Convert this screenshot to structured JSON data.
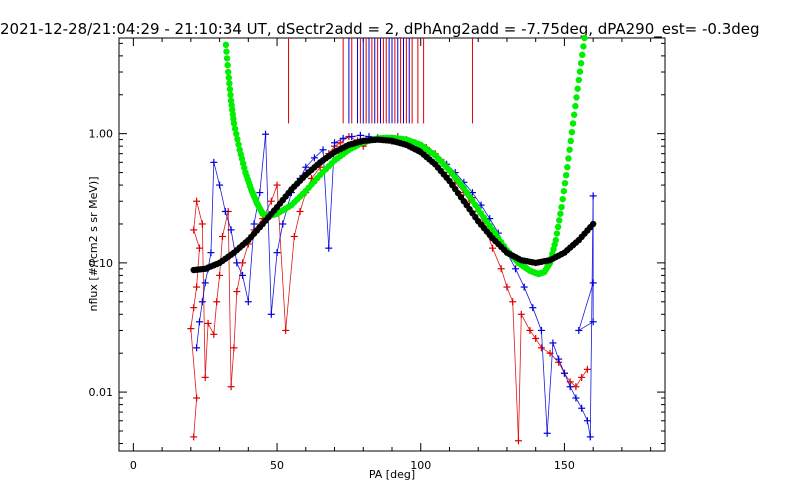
{
  "chart_data": {
    "type": "scatter",
    "title": "2021-12-28/21:04:29 - 21:10:34 UT, dSectr2add = 2, dPhAng2add = -7.75deg, dPA290_est=  -0.3deg",
    "xlabel": "PA [deg]",
    "ylabel": "nflux [#/(cm2 s sr MeV)]",
    "xlim": [
      -5,
      185
    ],
    "ylim": [
      0.0035,
      5.5
    ],
    "yscale": "log",
    "grid": false,
    "x_ticks": [
      0,
      50,
      100,
      150
    ],
    "y_ticks": [
      0.01,
      0.1,
      1.0
    ],
    "x_tick_labels": [
      "0",
      "50",
      "100",
      "150"
    ],
    "y_tick_labels": [
      "0.01",
      "0.10",
      "1.00"
    ],
    "colors": {
      "red": "#dd0000",
      "blue": "#0000dd",
      "green": "#00ee00",
      "black": "#000000"
    },
    "vertical_markers": {
      "red": [
        54,
        73,
        76,
        79,
        81,
        83,
        85,
        87,
        88,
        91,
        93,
        95,
        97,
        99,
        101,
        118
      ],
      "blue": [
        75,
        78,
        80,
        82,
        84,
        86,
        89,
        90,
        92,
        94,
        96
      ],
      "y_top": 5.5,
      "y_bottom": 1.2
    },
    "series": [
      {
        "color": "red",
        "points": [
          [
            21,
            0.0045
          ],
          [
            22,
            0.009
          ],
          [
            20,
            0.031
          ],
          [
            21,
            0.045
          ],
          [
            22,
            0.065
          ],
          [
            23,
            0.13
          ],
          [
            21,
            0.18
          ],
          [
            22,
            0.3
          ],
          [
            24,
            0.2
          ],
          [
            25,
            0.013
          ],
          [
            26,
            0.034
          ],
          [
            28,
            0.028
          ],
          [
            29,
            0.05
          ],
          [
            30,
            0.08
          ],
          [
            31,
            0.16
          ],
          [
            33,
            0.25
          ],
          [
            34,
            0.011
          ],
          [
            35,
            0.022
          ],
          [
            36,
            0.06
          ],
          [
            38,
            0.1
          ],
          [
            40,
            0.14
          ],
          [
            42,
            0.18
          ],
          [
            45,
            0.22
          ],
          [
            48,
            0.3
          ],
          [
            50,
            0.4
          ],
          [
            53,
            0.03
          ],
          [
            56,
            0.16
          ],
          [
            58,
            0.25
          ],
          [
            60,
            0.35
          ],
          [
            62,
            0.45
          ],
          [
            65,
            0.55
          ],
          [
            68,
            0.7
          ],
          [
            70,
            0.8
          ],
          [
            72,
            0.85
          ],
          [
            75,
            0.95
          ],
          [
            78,
            0.88
          ],
          [
            80,
            0.8
          ],
          [
            85,
            0.92
          ],
          [
            88,
            0.9
          ],
          [
            90,
            0.87
          ],
          [
            92,
            0.95
          ],
          [
            95,
            0.9
          ],
          [
            98,
            0.85
          ],
          [
            100,
            0.8
          ],
          [
            102,
            0.78
          ],
          [
            105,
            0.7
          ],
          [
            108,
            0.6
          ],
          [
            110,
            0.5
          ],
          [
            112,
            0.42
          ],
          [
            115,
            0.35
          ],
          [
            117,
            0.3
          ],
          [
            118,
            0.32
          ],
          [
            120,
            0.25
          ],
          [
            122,
            0.2
          ],
          [
            125,
            0.13
          ],
          [
            128,
            0.09
          ],
          [
            130,
            0.065
          ],
          [
            132,
            0.05
          ],
          [
            134,
            0.0042
          ],
          [
            135,
            0.04
          ],
          [
            138,
            0.03
          ],
          [
            140,
            0.026
          ],
          [
            142,
            0.022
          ],
          [
            145,
            0.02
          ],
          [
            148,
            0.017
          ],
          [
            150,
            0.014
          ],
          [
            152,
            0.012
          ],
          [
            154,
            0.011
          ],
          [
            156,
            0.013
          ],
          [
            158,
            0.015
          ]
        ]
      },
      {
        "color": "blue",
        "points": [
          [
            22,
            0.022
          ],
          [
            23,
            0.035
          ],
          [
            24,
            0.05
          ],
          [
            25,
            0.07
          ],
          [
            26,
            0.09
          ],
          [
            27,
            0.12
          ],
          [
            28,
            0.6
          ],
          [
            30,
            0.4
          ],
          [
            32,
            0.25
          ],
          [
            34,
            0.18
          ],
          [
            36,
            0.1
          ],
          [
            38,
            0.08
          ],
          [
            40,
            0.05
          ],
          [
            42,
            0.2
          ],
          [
            44,
            0.35
          ],
          [
            46,
            0.99
          ],
          [
            48,
            0.04
          ],
          [
            50,
            0.12
          ],
          [
            52,
            0.2
          ],
          [
            55,
            0.35
          ],
          [
            58,
            0.45
          ],
          [
            60,
            0.55
          ],
          [
            63,
            0.65
          ],
          [
            66,
            0.75
          ],
          [
            68,
            0.13
          ],
          [
            70,
            0.85
          ],
          [
            73,
            0.92
          ],
          [
            76,
            0.95
          ],
          [
            79,
            0.97
          ],
          [
            82,
            0.95
          ],
          [
            85,
            0.93
          ],
          [
            88,
            0.92
          ],
          [
            90,
            0.9
          ],
          [
            92,
            0.88
          ],
          [
            95,
            0.85
          ],
          [
            98,
            0.82
          ],
          [
            100,
            0.78
          ],
          [
            103,
            0.72
          ],
          [
            106,
            0.65
          ],
          [
            109,
            0.58
          ],
          [
            112,
            0.5
          ],
          [
            115,
            0.42
          ],
          [
            118,
            0.35
          ],
          [
            121,
            0.28
          ],
          [
            124,
            0.22
          ],
          [
            127,
            0.17
          ],
          [
            130,
            0.12
          ],
          [
            133,
            0.09
          ],
          [
            136,
            0.065
          ],
          [
            139,
            0.045
          ],
          [
            142,
            0.03
          ],
          [
            144,
            0.0048
          ],
          [
            146,
            0.024
          ],
          [
            148,
            0.018
          ],
          [
            150,
            0.014
          ],
          [
            152,
            0.011
          ],
          [
            154,
            0.009
          ],
          [
            156,
            0.0075
          ],
          [
            158,
            0.006
          ],
          [
            159,
            0.0045
          ],
          [
            160,
            0.33
          ],
          [
            160,
            0.035
          ],
          [
            155,
            0.03
          ],
          [
            160,
            0.07
          ]
        ]
      },
      {
        "color": "green",
        "name": "",
        "curve": [
          [
            32,
            5.5
          ],
          [
            33,
            3.0
          ],
          [
            34,
            1.8
          ],
          [
            35,
            1.2
          ],
          [
            37,
            0.75
          ],
          [
            39,
            0.5
          ],
          [
            41,
            0.37
          ],
          [
            43,
            0.29
          ],
          [
            45,
            0.24
          ],
          [
            47,
            0.23
          ],
          [
            50,
            0.24
          ],
          [
            55,
            0.28
          ],
          [
            60,
            0.36
          ],
          [
            65,
            0.48
          ],
          [
            70,
            0.62
          ],
          [
            75,
            0.75
          ],
          [
            80,
            0.86
          ],
          [
            85,
            0.92
          ],
          [
            90,
            0.93
          ],
          [
            95,
            0.9
          ],
          [
            100,
            0.82
          ],
          [
            105,
            0.68
          ],
          [
            110,
            0.52
          ],
          [
            115,
            0.38
          ],
          [
            120,
            0.26
          ],
          [
            125,
            0.18
          ],
          [
            130,
            0.125
          ],
          [
            134,
            0.1
          ],
          [
            138,
            0.087
          ],
          [
            141,
            0.082
          ],
          [
            143,
            0.085
          ],
          [
            145,
            0.1
          ],
          [
            147,
            0.15
          ],
          [
            149,
            0.27
          ],
          [
            151,
            0.55
          ],
          [
            153,
            1.2
          ],
          [
            155,
            2.6
          ],
          [
            157,
            5.5
          ]
        ]
      },
      {
        "color": "black",
        "name": "",
        "curve": [
          [
            21,
            0.088
          ],
          [
            25,
            0.09
          ],
          [
            30,
            0.1
          ],
          [
            35,
            0.12
          ],
          [
            40,
            0.15
          ],
          [
            45,
            0.2
          ],
          [
            50,
            0.27
          ],
          [
            55,
            0.37
          ],
          [
            60,
            0.48
          ],
          [
            65,
            0.6
          ],
          [
            70,
            0.72
          ],
          [
            75,
            0.82
          ],
          [
            80,
            0.88
          ],
          [
            85,
            0.9
          ],
          [
            90,
            0.88
          ],
          [
            95,
            0.82
          ],
          [
            100,
            0.72
          ],
          [
            105,
            0.58
          ],
          [
            110,
            0.43
          ],
          [
            115,
            0.3
          ],
          [
            120,
            0.21
          ],
          [
            125,
            0.155
          ],
          [
            130,
            0.12
          ],
          [
            135,
            0.105
          ],
          [
            140,
            0.1
          ],
          [
            145,
            0.105
          ],
          [
            150,
            0.12
          ],
          [
            155,
            0.15
          ],
          [
            160,
            0.2
          ]
        ]
      }
    ]
  }
}
